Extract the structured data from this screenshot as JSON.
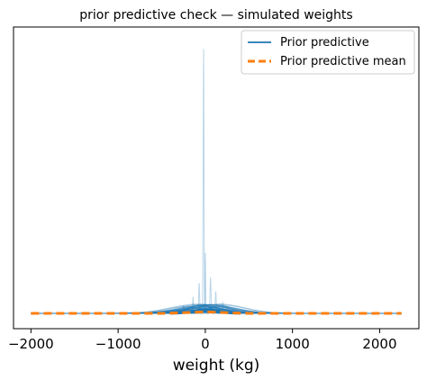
{
  "chart_data": {
    "type": "line",
    "title": "prior predictive check — simulated weights",
    "xlabel": "weight (kg)",
    "ylabel": "",
    "xlim": [
      -2200,
      2450
    ],
    "ylim": [
      0,
      1
    ],
    "xticks": [
      -2000,
      -1000,
      0,
      1000,
      2000
    ],
    "xtick_labels": [
      "−2000",
      "−1000",
      "0",
      "1000",
      "2000"
    ],
    "yticks_visible": false,
    "grid": false,
    "legend": {
      "placement": "top-right",
      "entries": [
        {
          "name": "Prior predictive",
          "color": "#1f77b4",
          "style": "solid"
        },
        {
          "name": "Prior predictive mean",
          "color": "#ff7f0e",
          "style": "dashed"
        }
      ]
    },
    "series": [
      {
        "name": "Prior predictive",
        "color": "#1f77b4",
        "peaks": [
          {
            "x": -20,
            "y": 0.96
          },
          {
            "x": 0,
            "y": 0.22
          },
          {
            "x": 60,
            "y": 0.13
          },
          {
            "x": -70,
            "y": 0.11
          },
          {
            "x": 120,
            "y": 0.08
          },
          {
            "x": -140,
            "y": 0.06
          },
          {
            "x": 200,
            "y": 0.04
          },
          {
            "x": -250,
            "y": 0.03
          }
        ]
      },
      {
        "name": "Prior predictive mean",
        "color": "#ff7f0e",
        "x": [
          -2000,
          -1500,
          -1000,
          -500,
          -200,
          0,
          200,
          500,
          1000,
          1500,
          2000,
          2250
        ],
        "y": [
          0.0,
          0.0,
          0.0,
          0.0,
          0.003,
          0.006,
          0.003,
          0.0,
          0.0,
          0.0,
          0.0,
          0.0
        ]
      }
    ]
  }
}
